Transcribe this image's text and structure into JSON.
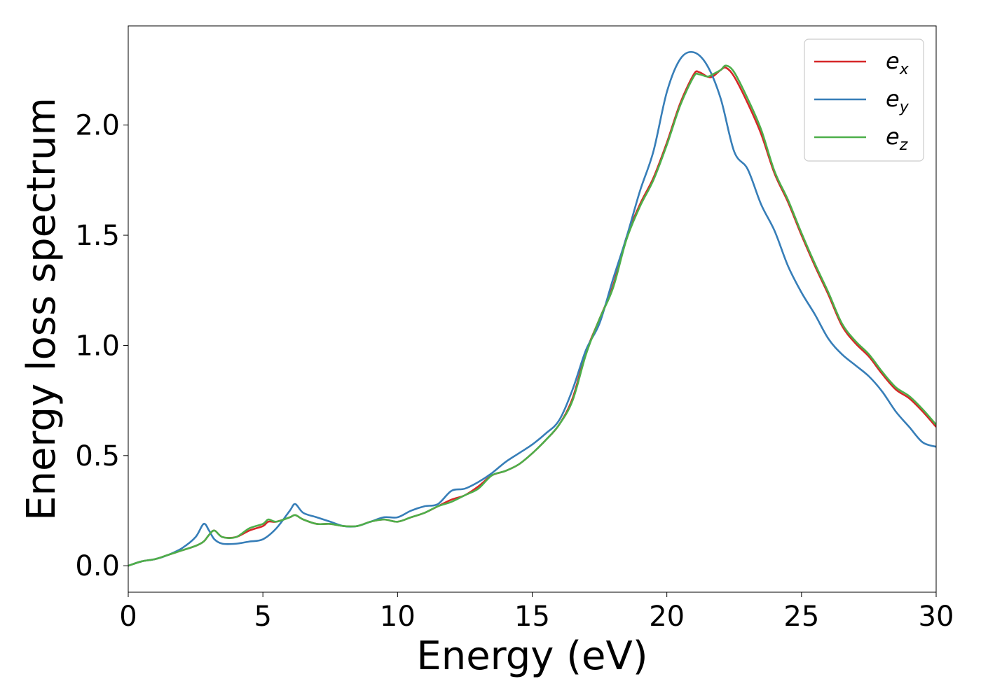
{
  "chart_data": {
    "type": "line",
    "title": "",
    "xlabel": "Energy (eV)",
    "ylabel": "Energy loss spectrum",
    "xlim": [
      0,
      30
    ],
    "ylim": [
      -0.12,
      2.45
    ],
    "xticks": [
      0,
      5,
      10,
      15,
      20,
      25,
      30
    ],
    "xtick_labels": [
      "0",
      "5",
      "10",
      "15",
      "20",
      "25",
      "30"
    ],
    "yticks": [
      0.0,
      0.5,
      1.0,
      1.5,
      2.0
    ],
    "ytick_labels": [
      "0.0",
      "0.5",
      "1.0",
      "1.5",
      "2.0"
    ],
    "grid": false,
    "legend_position": "top-right",
    "series": [
      {
        "name": "e_x",
        "label_base": "e",
        "label_sub": "x",
        "color": "#d62728",
        "x": [
          0,
          0.5,
          1,
          1.5,
          2,
          2.5,
          2.8,
          3.0,
          3.2,
          3.5,
          4.0,
          4.5,
          5.0,
          5.2,
          5.5,
          6.0,
          6.2,
          6.5,
          7.0,
          7.5,
          8.0,
          8.5,
          9.0,
          9.5,
          10,
          10.5,
          11,
          11.5,
          12,
          12.5,
          13,
          13.5,
          14,
          14.5,
          15,
          15.5,
          16,
          16.5,
          17,
          17.5,
          18,
          18.5,
          19,
          19.5,
          20,
          20.5,
          21,
          21.2,
          21.5,
          21.7,
          22,
          22.2,
          22.5,
          23,
          23.5,
          24,
          24.5,
          25,
          25.5,
          26,
          26.5,
          27,
          27.5,
          28,
          28.5,
          29,
          29.5,
          30
        ],
        "y": [
          0.0,
          0.02,
          0.03,
          0.05,
          0.07,
          0.09,
          0.11,
          0.14,
          0.16,
          0.13,
          0.13,
          0.16,
          0.18,
          0.2,
          0.2,
          0.22,
          0.23,
          0.21,
          0.19,
          0.19,
          0.18,
          0.18,
          0.2,
          0.21,
          0.2,
          0.22,
          0.24,
          0.27,
          0.3,
          0.32,
          0.36,
          0.41,
          0.43,
          0.46,
          0.51,
          0.57,
          0.64,
          0.76,
          0.97,
          1.12,
          1.27,
          1.49,
          1.64,
          1.76,
          1.92,
          2.1,
          2.23,
          2.24,
          2.22,
          2.22,
          2.25,
          2.26,
          2.22,
          2.1,
          1.96,
          1.78,
          1.65,
          1.5,
          1.36,
          1.23,
          1.09,
          1.01,
          0.95,
          0.87,
          0.8,
          0.76,
          0.7,
          0.63
        ]
      },
      {
        "name": "e_y",
        "label_base": "e",
        "label_sub": "y",
        "color": "#377eb8",
        "x": [
          0,
          0.5,
          1,
          1.5,
          2,
          2.5,
          2.8,
          3.0,
          3.2,
          3.5,
          4.0,
          4.5,
          5.0,
          5.5,
          6.0,
          6.2,
          6.5,
          7.0,
          7.5,
          8.0,
          8.5,
          9.0,
          9.5,
          10,
          10.5,
          11,
          11.5,
          12,
          12.5,
          13,
          13.5,
          14,
          14.5,
          15,
          15.5,
          16,
          16.5,
          17,
          17.5,
          18,
          18.5,
          19,
          19.5,
          20,
          20.5,
          21,
          21.5,
          22,
          22.5,
          23,
          23.5,
          24,
          24.5,
          25,
          25.5,
          26,
          26.5,
          27,
          27.5,
          28,
          28.5,
          29,
          29.5,
          30
        ],
        "y": [
          0.0,
          0.02,
          0.03,
          0.05,
          0.08,
          0.13,
          0.19,
          0.16,
          0.12,
          0.1,
          0.1,
          0.11,
          0.12,
          0.17,
          0.25,
          0.28,
          0.24,
          0.22,
          0.2,
          0.18,
          0.18,
          0.2,
          0.22,
          0.22,
          0.25,
          0.27,
          0.28,
          0.34,
          0.35,
          0.38,
          0.42,
          0.47,
          0.51,
          0.55,
          0.6,
          0.66,
          0.8,
          0.98,
          1.1,
          1.3,
          1.49,
          1.7,
          1.88,
          2.15,
          2.3,
          2.33,
          2.27,
          2.12,
          1.88,
          1.8,
          1.64,
          1.52,
          1.36,
          1.24,
          1.14,
          1.03,
          0.96,
          0.91,
          0.86,
          0.79,
          0.7,
          0.63,
          0.56,
          0.54
        ]
      },
      {
        "name": "e_z",
        "label_base": "e",
        "label_sub": "z",
        "color": "#4daf4a",
        "x": [
          0,
          0.5,
          1,
          1.5,
          2,
          2.5,
          2.8,
          3.0,
          3.2,
          3.5,
          4.0,
          4.5,
          5.0,
          5.2,
          5.5,
          6.0,
          6.2,
          6.5,
          7.0,
          7.5,
          8.0,
          8.5,
          9.0,
          9.5,
          10,
          10.5,
          11,
          11.5,
          12,
          12.5,
          13,
          13.5,
          14,
          14.5,
          15,
          15.5,
          16,
          16.5,
          17,
          17.5,
          18,
          18.5,
          19,
          19.5,
          20,
          20.5,
          21,
          21.2,
          21.5,
          21.7,
          22,
          22.2,
          22.5,
          23,
          23.5,
          24,
          24.5,
          25,
          25.5,
          26,
          26.5,
          27,
          27.5,
          28,
          28.5,
          29,
          29.5,
          30
        ],
        "y": [
          0.0,
          0.02,
          0.03,
          0.05,
          0.07,
          0.09,
          0.11,
          0.14,
          0.16,
          0.13,
          0.13,
          0.17,
          0.19,
          0.21,
          0.2,
          0.22,
          0.23,
          0.21,
          0.19,
          0.19,
          0.18,
          0.18,
          0.2,
          0.21,
          0.2,
          0.22,
          0.24,
          0.27,
          0.29,
          0.32,
          0.35,
          0.41,
          0.43,
          0.46,
          0.51,
          0.57,
          0.64,
          0.75,
          0.96,
          1.12,
          1.26,
          1.48,
          1.63,
          1.75,
          1.91,
          2.09,
          2.22,
          2.23,
          2.22,
          2.23,
          2.25,
          2.27,
          2.24,
          2.12,
          1.98,
          1.79,
          1.66,
          1.51,
          1.37,
          1.24,
          1.1,
          1.02,
          0.96,
          0.88,
          0.81,
          0.77,
          0.71,
          0.64
        ]
      }
    ]
  }
}
